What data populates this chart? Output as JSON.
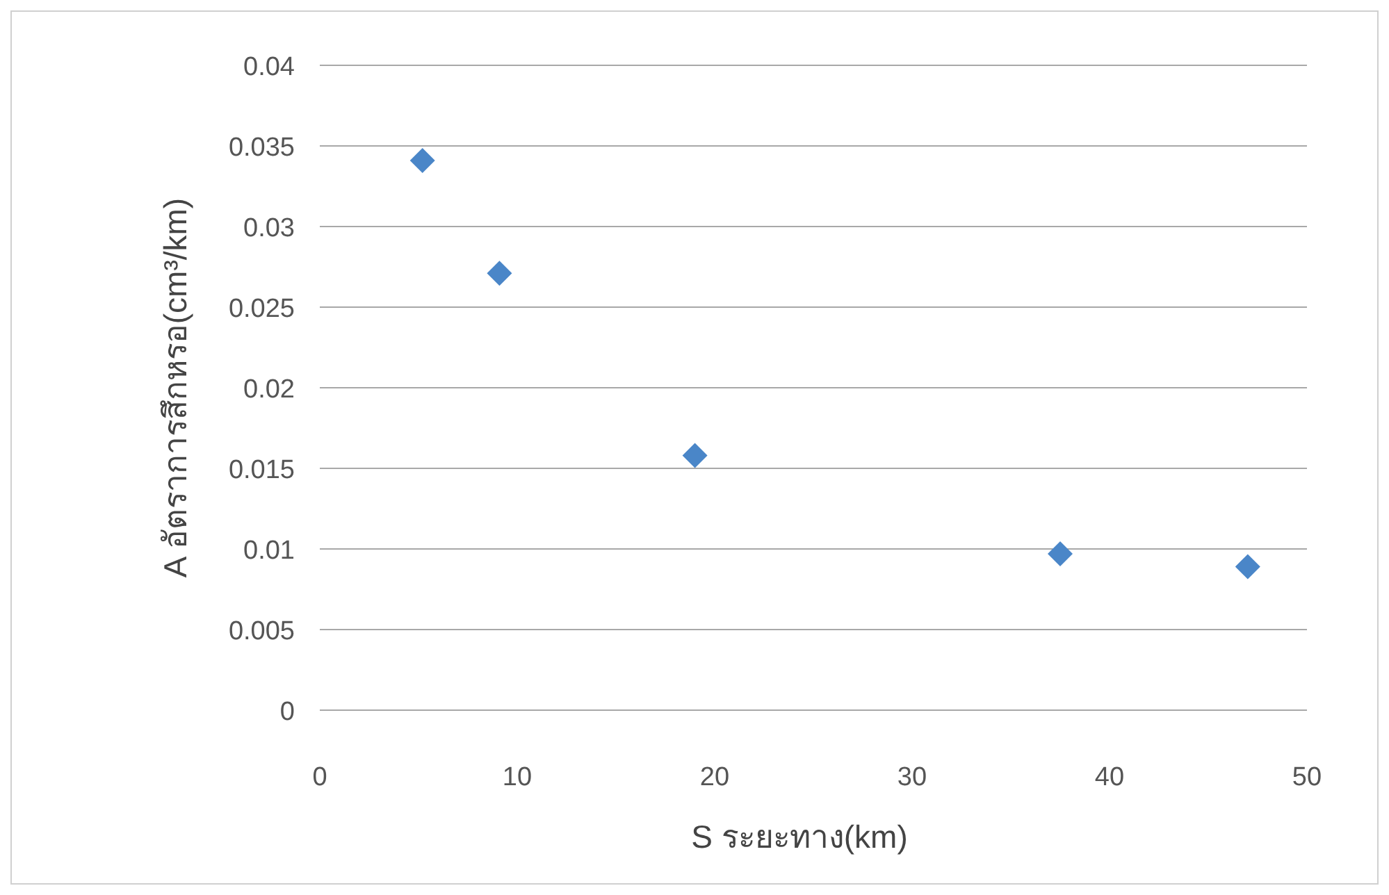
{
  "chart_data": {
    "type": "scatter",
    "xlabel": "S ระยะทาง(km)",
    "ylabel": "A อัตราการสึกหรอ(cm³/km)",
    "x": [
      5.2,
      9.1,
      19,
      37.5,
      47
    ],
    "series": [
      {
        "color": "#4a86c8",
        "values": [
          0.0341,
          0.0271,
          0.0158,
          0.0097,
          0.0089
        ]
      }
    ],
    "xlim": [
      0,
      50
    ],
    "xticks": [
      0,
      10,
      20,
      30,
      40,
      50
    ],
    "ylim": [
      0,
      0.04
    ],
    "yticks": [
      0,
      0.005,
      0.01,
      0.015,
      0.02,
      0.025,
      0.03,
      0.035,
      0.04
    ],
    "grid": "y",
    "marker": "diamond"
  }
}
